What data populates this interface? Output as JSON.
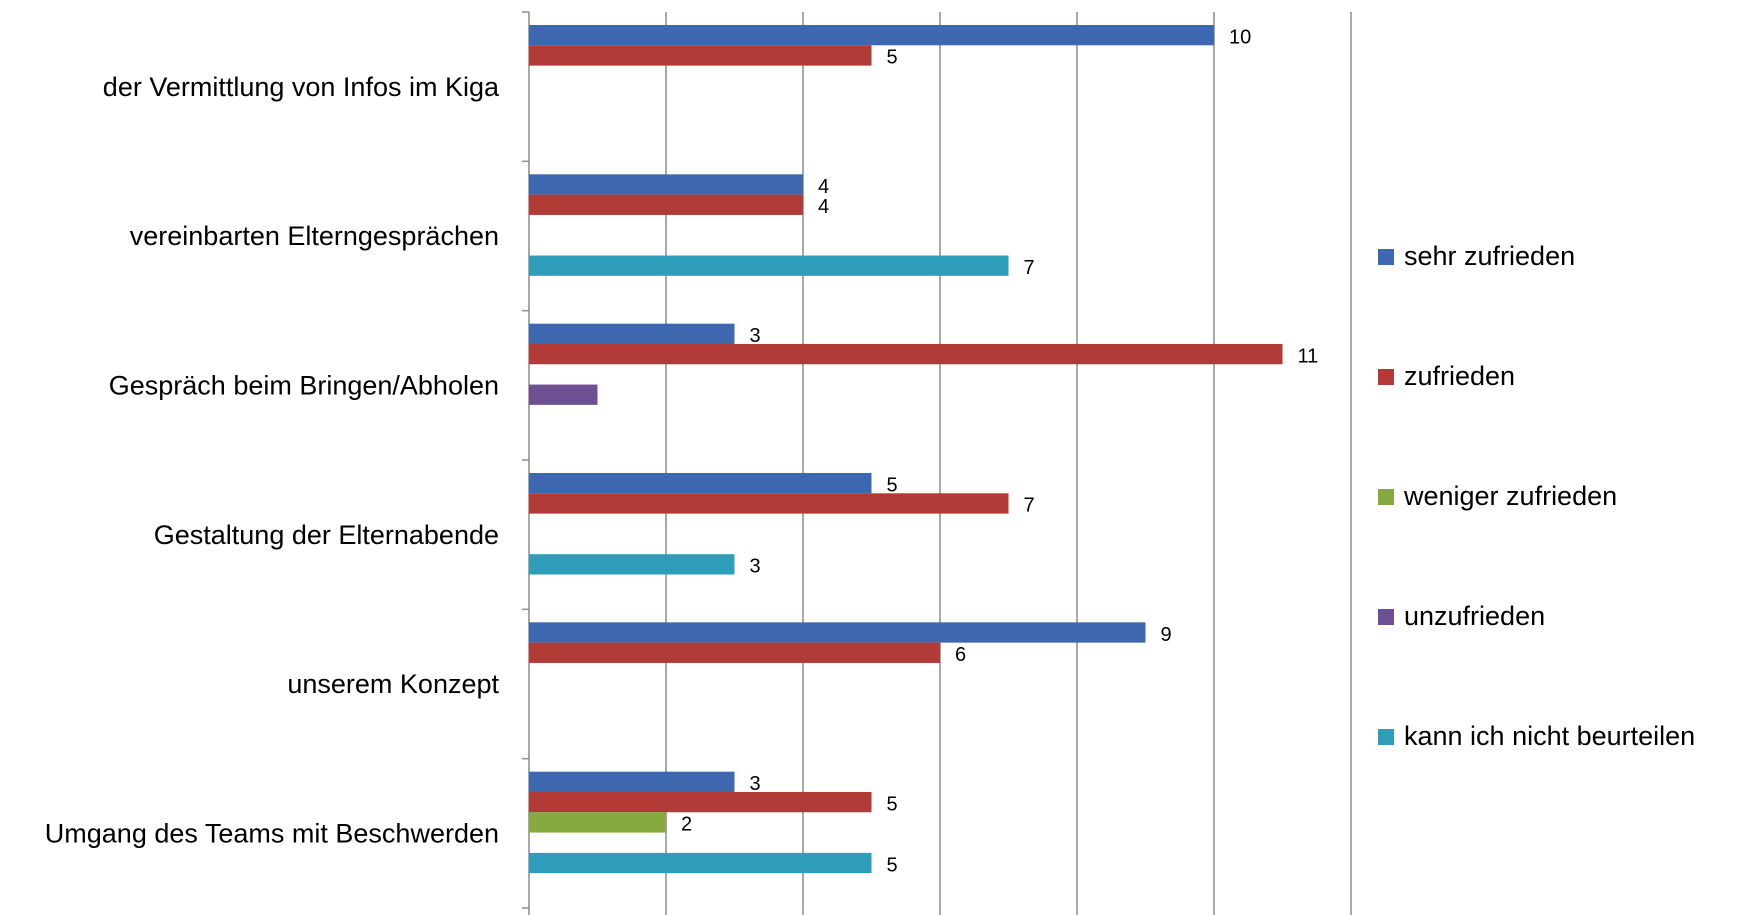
{
  "chart_data": {
    "type": "barh",
    "categories": [
      "der Vermittlung von Infos im Kiga",
      "vereinbarten Elterngesprächen",
      "Gespräch beim Bringen/Abholen",
      "Gestaltung der Elternabende",
      "unserem Konzept",
      "Umgang des Teams mit Beschwerden"
    ],
    "series": [
      {
        "name": "sehr zufrieden",
        "color": "#3d68b0",
        "values": [
          10,
          4,
          3,
          5,
          9,
          3
        ]
      },
      {
        "name": "zufrieden",
        "color": "#b23b37",
        "values": [
          5,
          4,
          11,
          7,
          6,
          5
        ]
      },
      {
        "name": "weniger zufrieden",
        "color": "#86aa40",
        "values": [
          null,
          null,
          null,
          null,
          null,
          2
        ]
      },
      {
        "name": "unzufrieden",
        "color": "#6d5092",
        "values": [
          null,
          null,
          1,
          null,
          null,
          null
        ],
        "value_labels": [
          null,
          null,
          null,
          null,
          null,
          null
        ]
      },
      {
        "name": "kann ich nicht beurteilen",
        "color": "#2e9db9",
        "values": [
          null,
          7,
          null,
          3,
          null,
          5
        ]
      }
    ],
    "xlim": [
      0,
      12
    ],
    "xticks": [
      0,
      2,
      4,
      6,
      8,
      10,
      12
    ],
    "grid": true,
    "legend": "right"
  }
}
